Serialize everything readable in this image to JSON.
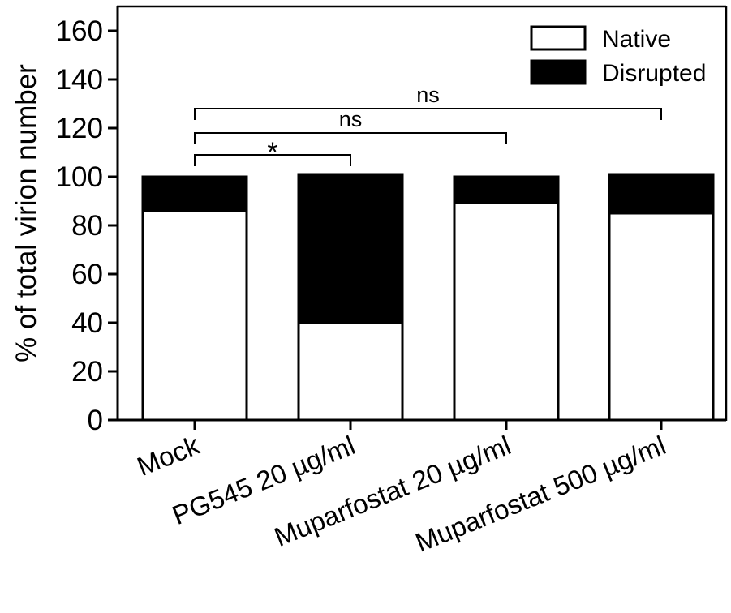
{
  "chart_data": {
    "type": "bar",
    "stacked": true,
    "title": "",
    "xlabel": "",
    "ylabel": "% of total virion number",
    "ylim": [
      0,
      170
    ],
    "yticks": [
      0,
      20,
      40,
      60,
      80,
      100,
      120,
      140,
      160
    ],
    "ytick_labels": [
      "0",
      "20",
      "40",
      "60",
      "80",
      "100",
      "120",
      "140",
      "160"
    ],
    "categories": [
      "Mock",
      "PG545 20 µg/ml",
      "Muparfostat 20 µg/ml",
      "Muparfostat 500 µg/ml"
    ],
    "series": [
      {
        "name": "Native",
        "values": [
          86,
          40,
          89.5,
          85
        ],
        "color": "#ffffff"
      },
      {
        "name": "Disrupted",
        "values": [
          14,
          61,
          10.5,
          16
        ],
        "color": "#000000"
      }
    ],
    "grid": false,
    "legend": {
      "position": "top-right",
      "entries": [
        "Native",
        "Disrupted"
      ]
    },
    "annotations": [
      {
        "type": "bracket",
        "from": "Mock",
        "to": "PG545 20 µg/ml",
        "y": 109,
        "label": "*"
      },
      {
        "type": "bracket",
        "from": "Mock",
        "to": "Muparfostat 20 µg/ml",
        "y": 118,
        "label": "ns"
      },
      {
        "type": "bracket",
        "from": "Mock",
        "to": "Muparfostat 500 µg/ml",
        "y": 128,
        "label": "ns"
      }
    ]
  }
}
